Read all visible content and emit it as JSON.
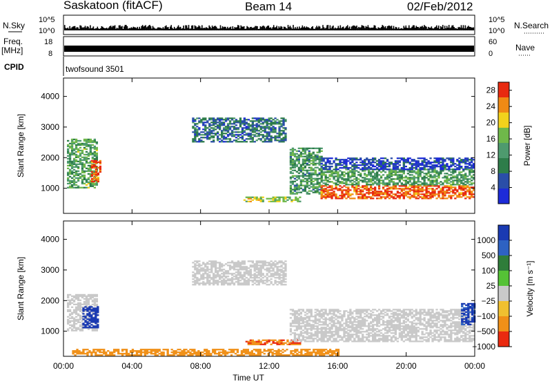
{
  "header": {
    "station": "Saskatoon (fitACF)",
    "beam": "Beam 14",
    "date": "02/Feb/2012"
  },
  "top_panels": {
    "nsky_label": "N.Sky",
    "nsearch_label": "N.Search",
    "freq_label_1": "Freq.",
    "freq_label_2": "[MHz]",
    "nave_label": "Nave",
    "cpid_label": "CPID",
    "cpid_value": "twofsound 3501",
    "nsky_ticks": [
      "10^5",
      "10^0"
    ],
    "nsearch_ticks": [
      "10^5",
      "10^0"
    ],
    "freq_ticks": [
      "18",
      "8"
    ],
    "nave_ticks": [
      "60",
      "0"
    ]
  },
  "colors": {
    "power_scale": [
      "#1d2bd8",
      "#2a4ea8",
      "#2e7d4a",
      "#4e9a6e",
      "#6fb84a",
      "#f2d21c",
      "#f08a14",
      "#e82a10"
    ],
    "velocity_scale": [
      "#1a3ab2",
      "#2e62c2",
      "#2f7d3a",
      "#55c236",
      "#c9c9c9",
      "#f0c030",
      "#f09018",
      "#ea2a10"
    ]
  },
  "chart_data": [
    {
      "type": "heatmap",
      "title": "",
      "xlabel": "Time UT",
      "ylabel": "Slant Range [km]",
      "x_ticks": [
        "00:00",
        "04:00",
        "08:00",
        "12:00",
        "16:00",
        "20:00",
        "00:00"
      ],
      "y_ticks": [
        "1000",
        "2000",
        "3000",
        "4000"
      ],
      "xlim_hours": [
        0,
        24
      ],
      "ylim_km": [
        180,
        4600
      ],
      "colorbar": {
        "label": "Power [dB]",
        "ticks": [
          "4",
          "8",
          "12",
          "16",
          "20",
          "24",
          "28"
        ],
        "range": [
          0,
          30
        ]
      },
      "regions": [
        {
          "t0": 0.2,
          "t1": 1.9,
          "r0": 1000,
          "r1": 2600,
          "level": 14
        },
        {
          "t0": 1.6,
          "t1": 2.1,
          "r0": 1200,
          "r1": 1900,
          "level": 27
        },
        {
          "t0": 7.5,
          "t1": 13.0,
          "r0": 2500,
          "r1": 3300,
          "level": 8
        },
        {
          "t0": 10.5,
          "t1": 13.8,
          "r0": 550,
          "r1": 700,
          "level": 18
        },
        {
          "t0": 13.2,
          "t1": 15.0,
          "r0": 800,
          "r1": 2300,
          "level": 12
        },
        {
          "t0": 15.0,
          "t1": 24.0,
          "r0": 650,
          "r1": 1100,
          "level": 27
        },
        {
          "t0": 15.0,
          "t1": 24.0,
          "r0": 1100,
          "r1": 1600,
          "level": 13
        },
        {
          "t0": 15.0,
          "t1": 24.0,
          "r0": 1600,
          "r1": 2000,
          "level": 4
        }
      ]
    },
    {
      "type": "heatmap",
      "title": "",
      "xlabel": "Time UT",
      "ylabel": "Slant Range [km]",
      "x_ticks": [
        "00:00",
        "04:00",
        "08:00",
        "12:00",
        "16:00",
        "20:00",
        "00:00"
      ],
      "y_ticks": [
        "1000",
        "2000",
        "3000",
        "4000"
      ],
      "xlim_hours": [
        0,
        24
      ],
      "ylim_km": [
        180,
        4600
      ],
      "colorbar": {
        "label": "Velocity [m s⁻¹]",
        "ticks": [
          "1000",
          "500",
          "100",
          "25",
          "−25",
          "−100",
          "−500",
          "−1000"
        ],
        "range": [
          -1000,
          1000
        ]
      },
      "regions": [
        {
          "t0": 0.2,
          "t1": 1.9,
          "r0": 1000,
          "r1": 2200,
          "level": 0
        },
        {
          "t0": 1.1,
          "t1": 2.0,
          "r0": 1100,
          "r1": 1800,
          "level": 900
        },
        {
          "t0": 7.5,
          "t1": 13.0,
          "r0": 2500,
          "r1": 3300,
          "level": 0
        },
        {
          "t0": 10.5,
          "t1": 13.8,
          "r0": 550,
          "r1": 700,
          "level": -300
        },
        {
          "t0": 13.2,
          "t1": 24.0,
          "r0": 650,
          "r1": 1700,
          "level": 0
        },
        {
          "t0": 23.2,
          "t1": 24.0,
          "r0": 1200,
          "r1": 1900,
          "level": 700
        },
        {
          "t0": 0.5,
          "t1": 16.0,
          "r0": 200,
          "r1": 400,
          "level": -120
        }
      ]
    }
  ]
}
